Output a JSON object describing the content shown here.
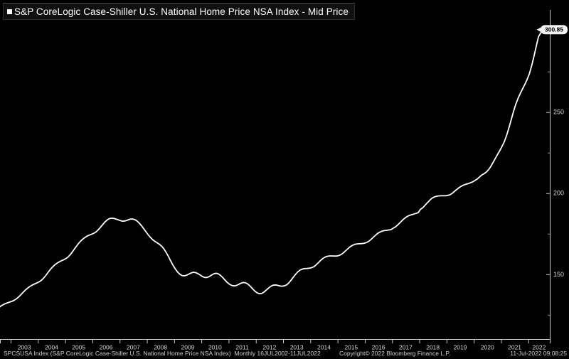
{
  "title_bar": {
    "marker": "■",
    "title": "S&P CoreLogic Case-Shiller U.S. National Home Price NSA Index - Mid Price"
  },
  "footer": {
    "left": "SPCSUSA Index (S&P CoreLogic Case-Shiller U.S. National Home Price NSA Index)  Monthly 16JUL2002-11JUL2022",
    "copyright": "Copyright© 2022 Bloomberg Finance L.P.",
    "timestamp": "11-Jul-2022 09:08:25"
  },
  "colors": {
    "background": "#000000",
    "line": "#ffffff",
    "axis": "#c8c8c8",
    "minor_tick": "#8a8a8a",
    "tick_label": "#d8d8d8",
    "price_bubble_bg": "#f2f2f2",
    "price_bubble_text": "#000000"
  },
  "chart_data": {
    "type": "line",
    "title": "S&P CoreLogic Case-Shiller U.S. National Home Price NSA Index - Mid Price",
    "xlabel": "",
    "ylabel": "",
    "frequency": "monthly",
    "period_start": "JUL2002",
    "period_end": "11JUL2022",
    "xlim": [
      2002.608,
      2022.79
    ],
    "ylim": [
      110,
      313
    ],
    "x_axis": {
      "tick_years": [
        2003,
        2004,
        2005,
        2006,
        2007,
        2008,
        2009,
        2010,
        2011,
        2012,
        2013,
        2014,
        2015,
        2016,
        2017,
        2018,
        2019,
        2020,
        2021,
        2022
      ],
      "tick_labels": [
        "2003",
        "2004",
        "2005",
        "2006",
        "2007",
        "2008",
        "2009",
        "2010",
        "2011",
        "2012",
        "2013",
        "2014",
        "2015",
        "2016",
        "2017",
        "2018",
        "2019",
        "2020",
        "2021",
        "2022"
      ]
    },
    "y_axis": {
      "major_ticks": [
        {
          "value": 150,
          "label": "150"
        },
        {
          "value": 200,
          "label": "200"
        },
        {
          "value": 250,
          "label": "250"
        }
      ],
      "minor_ticks": [
        125,
        175,
        225,
        275
      ],
      "grid": false
    },
    "last_price_label": "300.85",
    "series": [
      {
        "name": "SPCSUSA Index - Mid Price",
        "t_start": 2002.542,
        "t_step_months": 1,
        "t_end": 2022.53,
        "values": [
          129.0,
          130.2,
          131.1,
          131.8,
          132.3,
          132.8,
          133.3,
          133.9,
          134.8,
          136.0,
          137.4,
          138.9,
          140.3,
          141.5,
          142.5,
          143.3,
          144.0,
          144.6,
          145.3,
          146.2,
          147.6,
          149.3,
          151.2,
          153.0,
          154.6,
          155.9,
          156.9,
          157.7,
          158.4,
          159.0,
          159.8,
          160.9,
          162.5,
          164.4,
          166.4,
          168.3,
          170.0,
          171.4,
          172.5,
          173.4,
          174.1,
          174.6,
          175.2,
          176.0,
          177.3,
          178.9,
          180.6,
          182.2,
          183.5,
          184.3,
          184.6,
          184.4,
          184.0,
          183.5,
          183.0,
          182.7,
          182.9,
          183.4,
          183.9,
          184.1,
          183.8,
          183.0,
          181.7,
          180.1,
          178.3,
          176.4,
          174.5,
          172.8,
          171.4,
          170.3,
          169.4,
          168.5,
          167.3,
          165.6,
          163.4,
          160.9,
          158.2,
          155.6,
          153.3,
          151.4,
          150.0,
          149.2,
          149.0,
          149.4,
          150.1,
          150.8,
          151.2,
          151.0,
          150.4,
          149.5,
          148.6,
          148.0,
          148.0,
          148.6,
          149.5,
          150.3,
          150.6,
          150.2,
          149.2,
          147.8,
          146.2,
          144.8,
          143.7,
          143.0,
          142.8,
          143.1,
          143.8,
          144.5,
          144.9,
          144.7,
          143.9,
          142.6,
          141.1,
          139.7,
          138.6,
          138.0,
          138.1,
          138.9,
          140.1,
          141.4,
          142.5,
          143.2,
          143.4,
          143.2,
          142.8,
          142.6,
          142.8,
          143.4,
          144.6,
          146.3,
          148.2,
          150.0,
          151.5,
          152.6,
          153.2,
          153.5,
          153.6,
          153.7,
          154.0,
          154.6,
          155.7,
          157.1,
          158.5,
          159.7,
          160.6,
          161.1,
          161.3,
          161.3,
          161.2,
          161.2,
          161.5,
          162.1,
          163.1,
          164.4,
          165.7,
          166.9,
          167.8,
          168.4,
          168.7,
          168.8,
          168.9,
          169.0,
          169.4,
          170.1,
          171.2,
          172.5,
          173.8,
          175.0,
          175.9,
          176.5,
          176.9,
          177.1,
          177.3,
          177.5,
          178.4,
          179.2,
          180.4,
          181.8,
          183.2,
          184.5,
          185.5,
          186.2,
          186.7,
          187.1,
          187.5,
          188.0,
          190.0,
          191.0,
          192.5,
          194.0,
          195.5,
          196.8,
          197.6,
          198.1,
          198.3,
          198.4,
          198.4,
          198.4,
          198.6,
          199.0,
          199.9,
          201.1,
          202.3,
          203.4,
          204.3,
          205.0,
          205.5,
          205.9,
          206.4,
          207.0,
          207.8,
          208.7,
          209.9,
          211.2,
          212.0,
          213.0,
          214.5,
          216.5,
          219.0,
          221.5,
          224.0,
          226.4,
          229.0,
          231.9,
          235.8,
          240.4,
          245.4,
          250.4,
          254.8,
          258.5,
          261.6,
          264.4,
          267.2,
          270.2,
          273.8,
          278.6,
          284.3,
          290.5,
          296.5,
          300.85
        ]
      }
    ]
  }
}
